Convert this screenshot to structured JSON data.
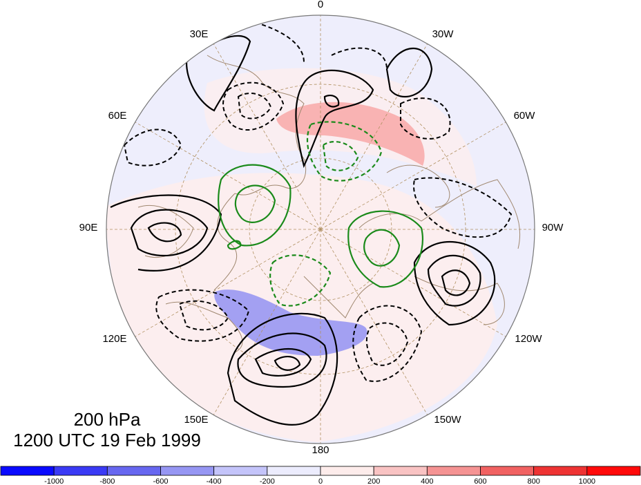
{
  "caption": {
    "level": "200 hPa",
    "time": "1200 UTC 19 Feb 1999"
  },
  "longitude_labels": {
    "lon_0": "0",
    "lon_30w": "30W",
    "lon_60w": "60W",
    "lon_90w": "90W",
    "lon_120w": "120W",
    "lon_150w": "150W",
    "lon_180": "180",
    "lon_150e": "150E",
    "lon_120e": "120E",
    "lon_90e": "90E",
    "lon_60e": "60E",
    "lon_30e": "30E"
  },
  "colorbar": {
    "ticks": [
      "-1000",
      "-800",
      "-600",
      "-400",
      "-200",
      "0",
      "200",
      "400",
      "600",
      "800",
      "1000"
    ],
    "colors": [
      "#0a0aff",
      "#3a3af5",
      "#6767f0",
      "#9696f3",
      "#c4c4fa",
      "#ececfd",
      "#fdeceb",
      "#f9c3c3",
      "#f59393",
      "#f16262",
      "#ee3333",
      "#ff0a0a"
    ]
  },
  "colors": {
    "positive_contour": "#000000",
    "negative_contour": "#000000",
    "tendency_contour": "#1a8a1a",
    "coastline": "#a08870",
    "graticule": "#b09060"
  }
}
